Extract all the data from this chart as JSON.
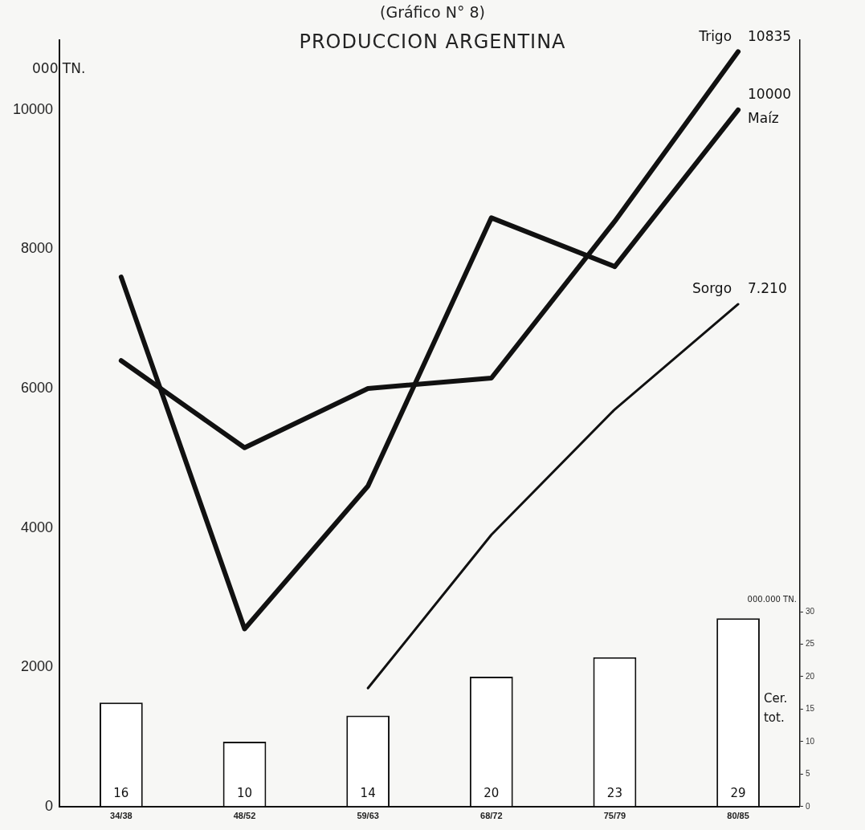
{
  "chart_data": {
    "type": "line",
    "title": "PRODUCCION ARGENTINA",
    "subtitle": "(Gráfico N° 8)",
    "ylabel": "000 TN.",
    "y2label": "000.000 TN.",
    "categories": [
      "34/38",
      "48/52",
      "59/63",
      "68/72",
      "75/79",
      "80/85"
    ],
    "series": [
      {
        "name": "Trigo",
        "color": "#111111",
        "values": [
          6400,
          5150,
          6000,
          6150,
          8400,
          10835
        ],
        "value_labels": [
          null,
          null,
          null,
          null,
          null,
          "10835"
        ]
      },
      {
        "name": "Maíz",
        "color": "#111111",
        "values": [
          7600,
          2550,
          4600,
          8450,
          7750,
          10000
        ],
        "value_labels": [
          null,
          null,
          null,
          null,
          null,
          "10000"
        ]
      },
      {
        "name": "Sorgo",
        "color": "#111111",
        "values": [
          null,
          null,
          1700,
          3900,
          5700,
          7210
        ],
        "value_labels": [
          null,
          null,
          null,
          null,
          null,
          "7.210"
        ]
      },
      {
        "name": "Cer. tot.",
        "type": "bar",
        "axis": "y2",
        "color": "#ffffff",
        "values": [
          16,
          10,
          14,
          20,
          23,
          29
        ]
      }
    ],
    "ylim": [
      0,
      11000
    ],
    "yticks": [
      0,
      2000,
      4000,
      6000,
      8000,
      10000
    ],
    "y2lim": [
      0,
      118
    ],
    "y2ticks": [
      0,
      5,
      10,
      15,
      20,
      25,
      30
    ],
    "data_labels": true,
    "grid": false,
    "legend": false,
    "marker": "none",
    "line_style": "solid"
  }
}
